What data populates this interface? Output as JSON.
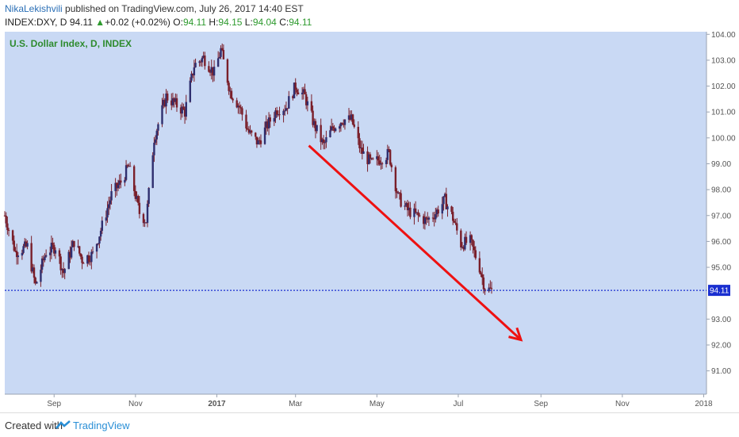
{
  "header": {
    "author": "NikaLekishvili",
    "published": "published on TradingView.com, July 26, 2017 14:40 EST",
    "symbol": "INDEX:DXY, D",
    "last": "94.11",
    "change": "+0.02 (+0.02%)",
    "o_label": "O:",
    "o_value": "94.11",
    "h_label": "H:",
    "h_value": "94.15",
    "l_label": "L:",
    "l_value": "94.04",
    "c_label": "C:",
    "c_value": "94.11"
  },
  "footer": {
    "created_with": "Created with",
    "brand": "TradingView"
  },
  "colors": {
    "plot_bg": "#c9d9f4",
    "candle": "#7a1f2a",
    "price_line": "#1a2fd0",
    "arrow": "#ee1111",
    "label_green": "#2e8b2e"
  },
  "chart_data": {
    "type": "candlestick",
    "title": "U.S. Dollar Index, D, INDEX",
    "x_ticks": [
      "Sep",
      "Nov",
      "2017",
      "Mar",
      "May",
      "Jul",
      "Sep",
      "Nov",
      "2018"
    ],
    "y_ticks": [
      "104.00",
      "103.00",
      "102.00",
      "101.00",
      "100.00",
      "99.00",
      "98.00",
      "97.00",
      "96.00",
      "95.00",
      "93.00",
      "92.00",
      "91.00"
    ],
    "ylim": [
      90.1,
      104.1
    ],
    "current_price": 94.11,
    "current_price_label": "94.11",
    "series_path": [
      [
        "2016-07-26",
        97.0
      ],
      [
        "2016-08-03",
        95.6
      ],
      [
        "2016-08-12",
        95.8
      ],
      [
        "2016-08-18",
        94.3
      ],
      [
        "2016-08-26",
        95.6
      ],
      [
        "2016-09-02",
        95.8
      ],
      [
        "2016-09-08",
        94.8
      ],
      [
        "2016-09-16",
        96.0
      ],
      [
        "2016-09-22",
        95.3
      ],
      [
        "2016-09-30",
        95.5
      ],
      [
        "2016-10-07",
        96.6
      ],
      [
        "2016-10-14",
        97.8
      ],
      [
        "2016-10-21",
        98.3
      ],
      [
        "2016-10-27",
        98.9
      ],
      [
        "2016-11-04",
        97.1
      ],
      [
        "2016-11-09",
        96.8
      ],
      [
        "2016-11-15",
        100.0
      ],
      [
        "2016-11-24",
        101.6
      ],
      [
        "2016-12-01",
        101.3
      ],
      [
        "2016-12-08",
        101.0
      ],
      [
        "2016-12-15",
        102.8
      ],
      [
        "2016-12-22",
        103.1
      ],
      [
        "2016-12-30",
        102.5
      ],
      [
        "2017-01-04",
        103.4
      ],
      [
        "2017-01-11",
        101.8
      ],
      [
        "2017-01-18",
        101.2
      ],
      [
        "2017-01-25",
        100.2
      ],
      [
        "2017-02-01",
        99.8
      ],
      [
        "2017-02-08",
        100.5
      ],
      [
        "2017-02-15",
        101.1
      ],
      [
        "2017-02-22",
        101.2
      ],
      [
        "2017-03-01",
        102.0
      ],
      [
        "2017-03-08",
        101.6
      ],
      [
        "2017-03-15",
        100.5
      ],
      [
        "2017-03-22",
        99.7
      ],
      [
        "2017-03-29",
        100.4
      ],
      [
        "2017-04-05",
        100.7
      ],
      [
        "2017-04-12",
        100.7
      ],
      [
        "2017-04-19",
        99.5
      ],
      [
        "2017-04-27",
        99.0
      ],
      [
        "2017-05-04",
        99.2
      ],
      [
        "2017-05-10",
        99.4
      ],
      [
        "2017-05-17",
        97.7
      ],
      [
        "2017-05-24",
        97.2
      ],
      [
        "2017-05-31",
        97.0
      ],
      [
        "2017-06-07",
        96.8
      ],
      [
        "2017-06-14",
        97.1
      ],
      [
        "2017-06-21",
        97.6
      ],
      [
        "2017-06-27",
        96.9
      ],
      [
        "2017-07-03",
        95.9
      ],
      [
        "2017-07-10",
        96.0
      ],
      [
        "2017-07-17",
        95.0
      ],
      [
        "2017-07-21",
        94.2
      ],
      [
        "2017-07-26",
        94.1
      ]
    ],
    "arrow": {
      "from": [
        "2017-03-11",
        99.7
      ],
      "to": [
        "2017-08-17",
        92.2
      ]
    }
  }
}
